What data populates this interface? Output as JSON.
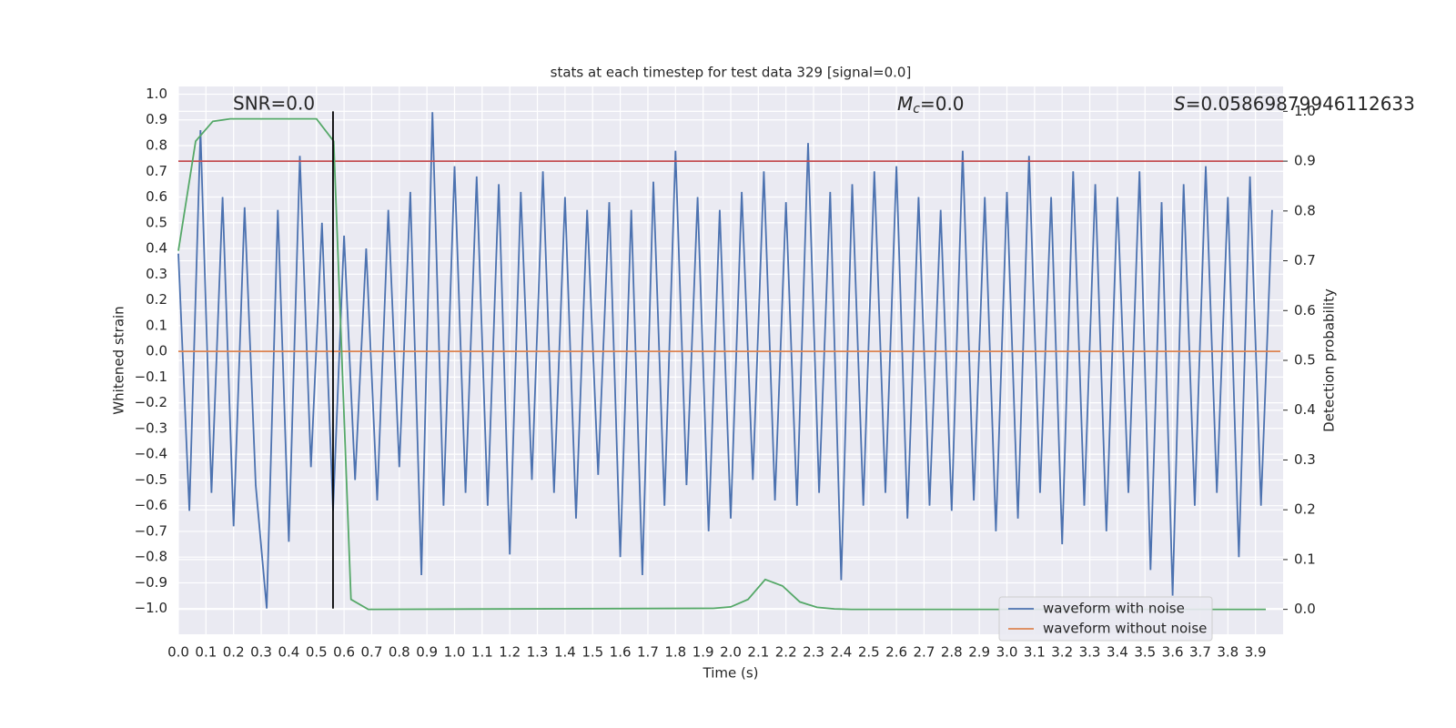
{
  "chart_data": {
    "type": "line",
    "title": "stats at each timestep for test data 329 [signal=0.0]",
    "x_label": "Time (s)",
    "y_label": "Whitened strain",
    "y2_label": "Detection probability",
    "annotations": {
      "snr": "SNR=0.0",
      "mc": {
        "symbol": "M",
        "subscript": "c",
        "text": "=0.0"
      },
      "s": {
        "symbol": "S",
        "text": "=0.05869879946112633"
      }
    },
    "grid": true,
    "legend": "lower right",
    "xlim": [
      0,
      4.0
    ],
    "ylim": [
      -1.1,
      1.03
    ],
    "y2lim": [
      -0.05,
      1.05
    ],
    "xticks": [
      {
        "value": 0,
        "label": "0.0"
      },
      0.1,
      0.2,
      0.3,
      0.4,
      0.5,
      0.6,
      0.7,
      0.8,
      0.9,
      {
        "value": 1,
        "label": "1.0"
      },
      1.1,
      1.2,
      1.3,
      1.4,
      1.5,
      1.6,
      1.7,
      1.8,
      1.9,
      {
        "value": 2,
        "label": "2.0"
      },
      2.1,
      2.2,
      2.3,
      2.4,
      2.5,
      2.6,
      2.7,
      2.8,
      2.9,
      {
        "value": 3,
        "label": "3.0"
      },
      3.1,
      3.2,
      3.3,
      3.4,
      3.5,
      3.6,
      3.7,
      3.8,
      3.9
    ],
    "yticks": [
      {
        "value": -1,
        "label": "−1.0"
      },
      {
        "value": -0.9,
        "label": "−0.9"
      },
      {
        "value": -0.8,
        "label": "−0.8"
      },
      {
        "value": -0.7,
        "label": "−0.7"
      },
      {
        "value": -0.6,
        "label": "−0.6"
      },
      {
        "value": -0.5,
        "label": "−0.5"
      },
      {
        "value": -0.4,
        "label": "−0.4"
      },
      {
        "value": -0.3,
        "label": "−0.3"
      },
      {
        "value": -0.2,
        "label": "−0.2"
      },
      {
        "value": -0.1,
        "label": "−0.1"
      },
      {
        "value": 0,
        "label": "0.0"
      },
      0.1,
      0.2,
      0.3,
      0.4,
      0.5,
      0.6,
      0.7,
      0.8,
      0.9,
      {
        "value": 1,
        "label": "1.0"
      }
    ],
    "y2ticks": [
      {
        "value": 0,
        "label": "0.0"
      },
      0.1,
      0.2,
      0.3,
      0.4,
      0.5,
      0.6,
      0.7,
      0.8,
      0.9,
      {
        "value": 1,
        "label": "1.0"
      }
    ],
    "series": [
      {
        "name": "waveform with noise",
        "color": "#4c72b0",
        "x": [
          0,
          0.04,
          0.08,
          0.12,
          0.16,
          0.2,
          0.24,
          0.28,
          0.32,
          0.36,
          0.4,
          0.44,
          0.48,
          0.52,
          0.56,
          0.6,
          0.64,
          0.68,
          0.72,
          0.76,
          0.8,
          0.84,
          0.88,
          0.92,
          0.96,
          1.0,
          1.04,
          1.08,
          1.12,
          1.16,
          1.2,
          1.24,
          1.28,
          1.32,
          1.36,
          1.4,
          1.44,
          1.48,
          1.52,
          1.56,
          1.6,
          1.64,
          1.68,
          1.72,
          1.76,
          1.8,
          1.84,
          1.88,
          1.92,
          1.96,
          2.0,
          2.04,
          2.08,
          2.12,
          2.16,
          2.2,
          2.24,
          2.28,
          2.32,
          2.36,
          2.4,
          2.44,
          2.48,
          2.52,
          2.56,
          2.6,
          2.64,
          2.68,
          2.72,
          2.76,
          2.8,
          2.84,
          2.88,
          2.92,
          2.96,
          3.0,
          3.04,
          3.08,
          3.12,
          3.16,
          3.2,
          3.24,
          3.28,
          3.32,
          3.36,
          3.4,
          3.44,
          3.48,
          3.52,
          3.56,
          3.6,
          3.64,
          3.68,
          3.72,
          3.76,
          3.8,
          3.84,
          3.88,
          3.92,
          3.96
        ],
        "values": [
          0.38,
          -0.62,
          0.86,
          -0.55,
          0.6,
          -0.68,
          0.56,
          -0.52,
          -1.0,
          0.55,
          -0.74,
          0.76,
          -0.45,
          0.5,
          -0.62,
          0.45,
          -0.5,
          0.4,
          -0.58,
          0.55,
          -0.45,
          0.62,
          -0.87,
          0.93,
          -0.6,
          0.72,
          -0.55,
          0.68,
          -0.6,
          0.65,
          -0.79,
          0.62,
          -0.5,
          0.7,
          -0.55,
          0.6,
          -0.65,
          0.55,
          -0.48,
          0.58,
          -0.8,
          0.55,
          -0.87,
          0.66,
          -0.6,
          0.78,
          -0.52,
          0.6,
          -0.7,
          0.55,
          -0.65,
          0.62,
          -0.5,
          0.7,
          -0.58,
          0.58,
          -0.6,
          0.81,
          -0.55,
          0.62,
          -0.89,
          0.65,
          -0.6,
          0.7,
          -0.55,
          0.72,
          -0.65,
          0.6,
          -0.6,
          0.55,
          -0.62,
          0.78,
          -0.58,
          0.6,
          -0.7,
          0.62,
          -0.65,
          0.76,
          -0.55,
          0.6,
          -0.75,
          0.7,
          -0.6,
          0.65,
          -0.7,
          0.6,
          -0.55,
          0.7,
          -0.85,
          0.58,
          -0.95,
          0.65,
          -0.6,
          0.72,
          -0.55,
          0.6,
          -0.8,
          0.68,
          -0.6,
          0.55
        ]
      },
      {
        "name": "waveform without noise",
        "color": "#dd8452",
        "x": [
          0,
          3.99
        ],
        "values": [
          0,
          0
        ]
      }
    ],
    "detection_probability": {
      "color": "#55a868",
      "axis": "y2",
      "x": [
        0,
        0.0625,
        0.125,
        0.1875,
        0.5,
        0.5625,
        0.625,
        0.6875,
        1.9375,
        2.0,
        2.0625,
        2.125,
        2.1875,
        2.25,
        2.3125,
        2.375,
        2.4375,
        3.9375
      ],
      "values": [
        0.72,
        0.94,
        0.98,
        0.985,
        0.985,
        0.94,
        0.02,
        0,
        0.002,
        0.005,
        0.02,
        0.06,
        0.047,
        0.015,
        0.004,
        0.001,
        0,
        0
      ]
    },
    "threshold": {
      "value": 0.9,
      "axis": "y2",
      "color": "#c44e52"
    },
    "marker_time": {
      "x": 0.56,
      "color": "#000000"
    }
  }
}
